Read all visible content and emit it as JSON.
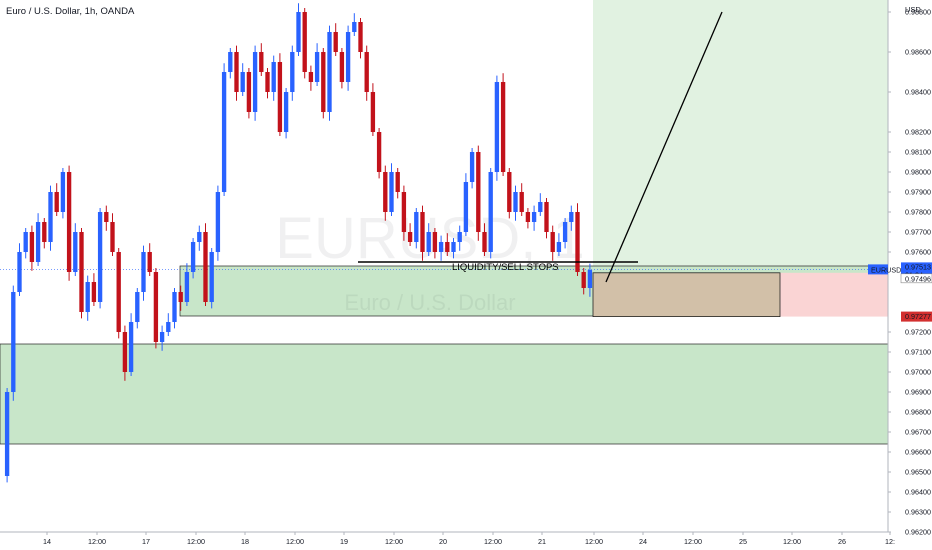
{
  "title": "Euro / U.S. Dollar, 1h, OANDA",
  "watermark": {
    "symbol": "EURUSD, 1",
    "name": "Euro / U.S. Dollar"
  },
  "colors": {
    "up": "#2962ff",
    "down": "#c2121b",
    "demand_zone": "#c8e6c9",
    "target_zone": "#e1f2e1",
    "stop_zone": "#fad4d4",
    "entry_box": "#d2c0a8",
    "price_tag": "#2962ff",
    "stop_tag": "#d32f2f"
  },
  "price_scale": {
    "currency": "USD",
    "ticks": [
      "0.98800",
      "0.98600",
      "0.98400",
      "0.98200",
      "0.98100",
      "0.98000",
      "0.97900",
      "0.97800",
      "0.97700",
      "0.97600",
      "0.97513",
      "0.97496",
      "0.97277",
      "0.97200",
      "0.97100",
      "0.97000",
      "0.96900",
      "0.96800",
      "0.96700",
      "0.96600",
      "0.96500",
      "0.96400",
      "0.96300",
      "0.96200"
    ]
  },
  "time_scale": {
    "ticks": [
      "14",
      "12:00",
      "17",
      "12:00",
      "18",
      "12:00",
      "19",
      "12:00",
      "20",
      "12:00",
      "21",
      "12:00",
      "24",
      "12:00",
      "25",
      "12:00",
      "26",
      "12:"
    ]
  },
  "price_tags": {
    "symbol": "EURUSD",
    "last": "0.97513",
    "countdown": "01:24",
    "entry": "0.97496",
    "stop": "0.97277"
  },
  "annotations": {
    "liquidity": "LIQUIDITY/SELL STOPS"
  },
  "chart_data": {
    "type": "candlestick",
    "symbol": "EURUSD",
    "timeframe": "1h",
    "close_levels": [
      0.969,
      0.974,
      0.976,
      0.977,
      0.9755,
      0.9775,
      0.9765,
      0.979,
      0.978,
      0.98,
      0.975,
      0.977,
      0.973,
      0.9745,
      0.9735,
      0.978,
      0.9775,
      0.976,
      0.972,
      0.97,
      0.9725,
      0.974,
      0.976,
      0.975,
      0.9715,
      0.972,
      0.9725,
      0.974,
      0.9735,
      0.975,
      0.9765,
      0.977,
      0.9735,
      0.976,
      0.979,
      0.985,
      0.986,
      0.984,
      0.985,
      0.983,
      0.986,
      0.985,
      0.984,
      0.9855,
      0.982,
      0.984,
      0.986,
      0.988,
      0.985,
      0.9845,
      0.986,
      0.983,
      0.987,
      0.986,
      0.9845,
      0.987,
      0.9875,
      0.986,
      0.984,
      0.982,
      0.98,
      0.978,
      0.98,
      0.979,
      0.977,
      0.9765,
      0.978,
      0.976,
      0.977,
      0.976,
      0.9765,
      0.976,
      0.9765,
      0.977,
      0.9795,
      0.981,
      0.977,
      0.976,
      0.98,
      0.9845,
      0.98,
      0.978,
      0.979,
      0.978,
      0.9775,
      0.978,
      0.9785,
      0.977,
      0.976,
      0.9765,
      0.9775,
      0.978,
      0.975,
      0.9742,
      0.9751
    ],
    "levels": {
      "last_price": 0.97513,
      "entry": 0.97496,
      "stop": 0.97277,
      "target": 0.988,
      "liquidity_line": 0.9755,
      "demand_zone_1": [
        0.9728,
        0.9753
      ],
      "demand_zone_2": [
        0.9664,
        0.9714
      ]
    },
    "ylim": [
      0.962,
      0.9886
    ]
  }
}
